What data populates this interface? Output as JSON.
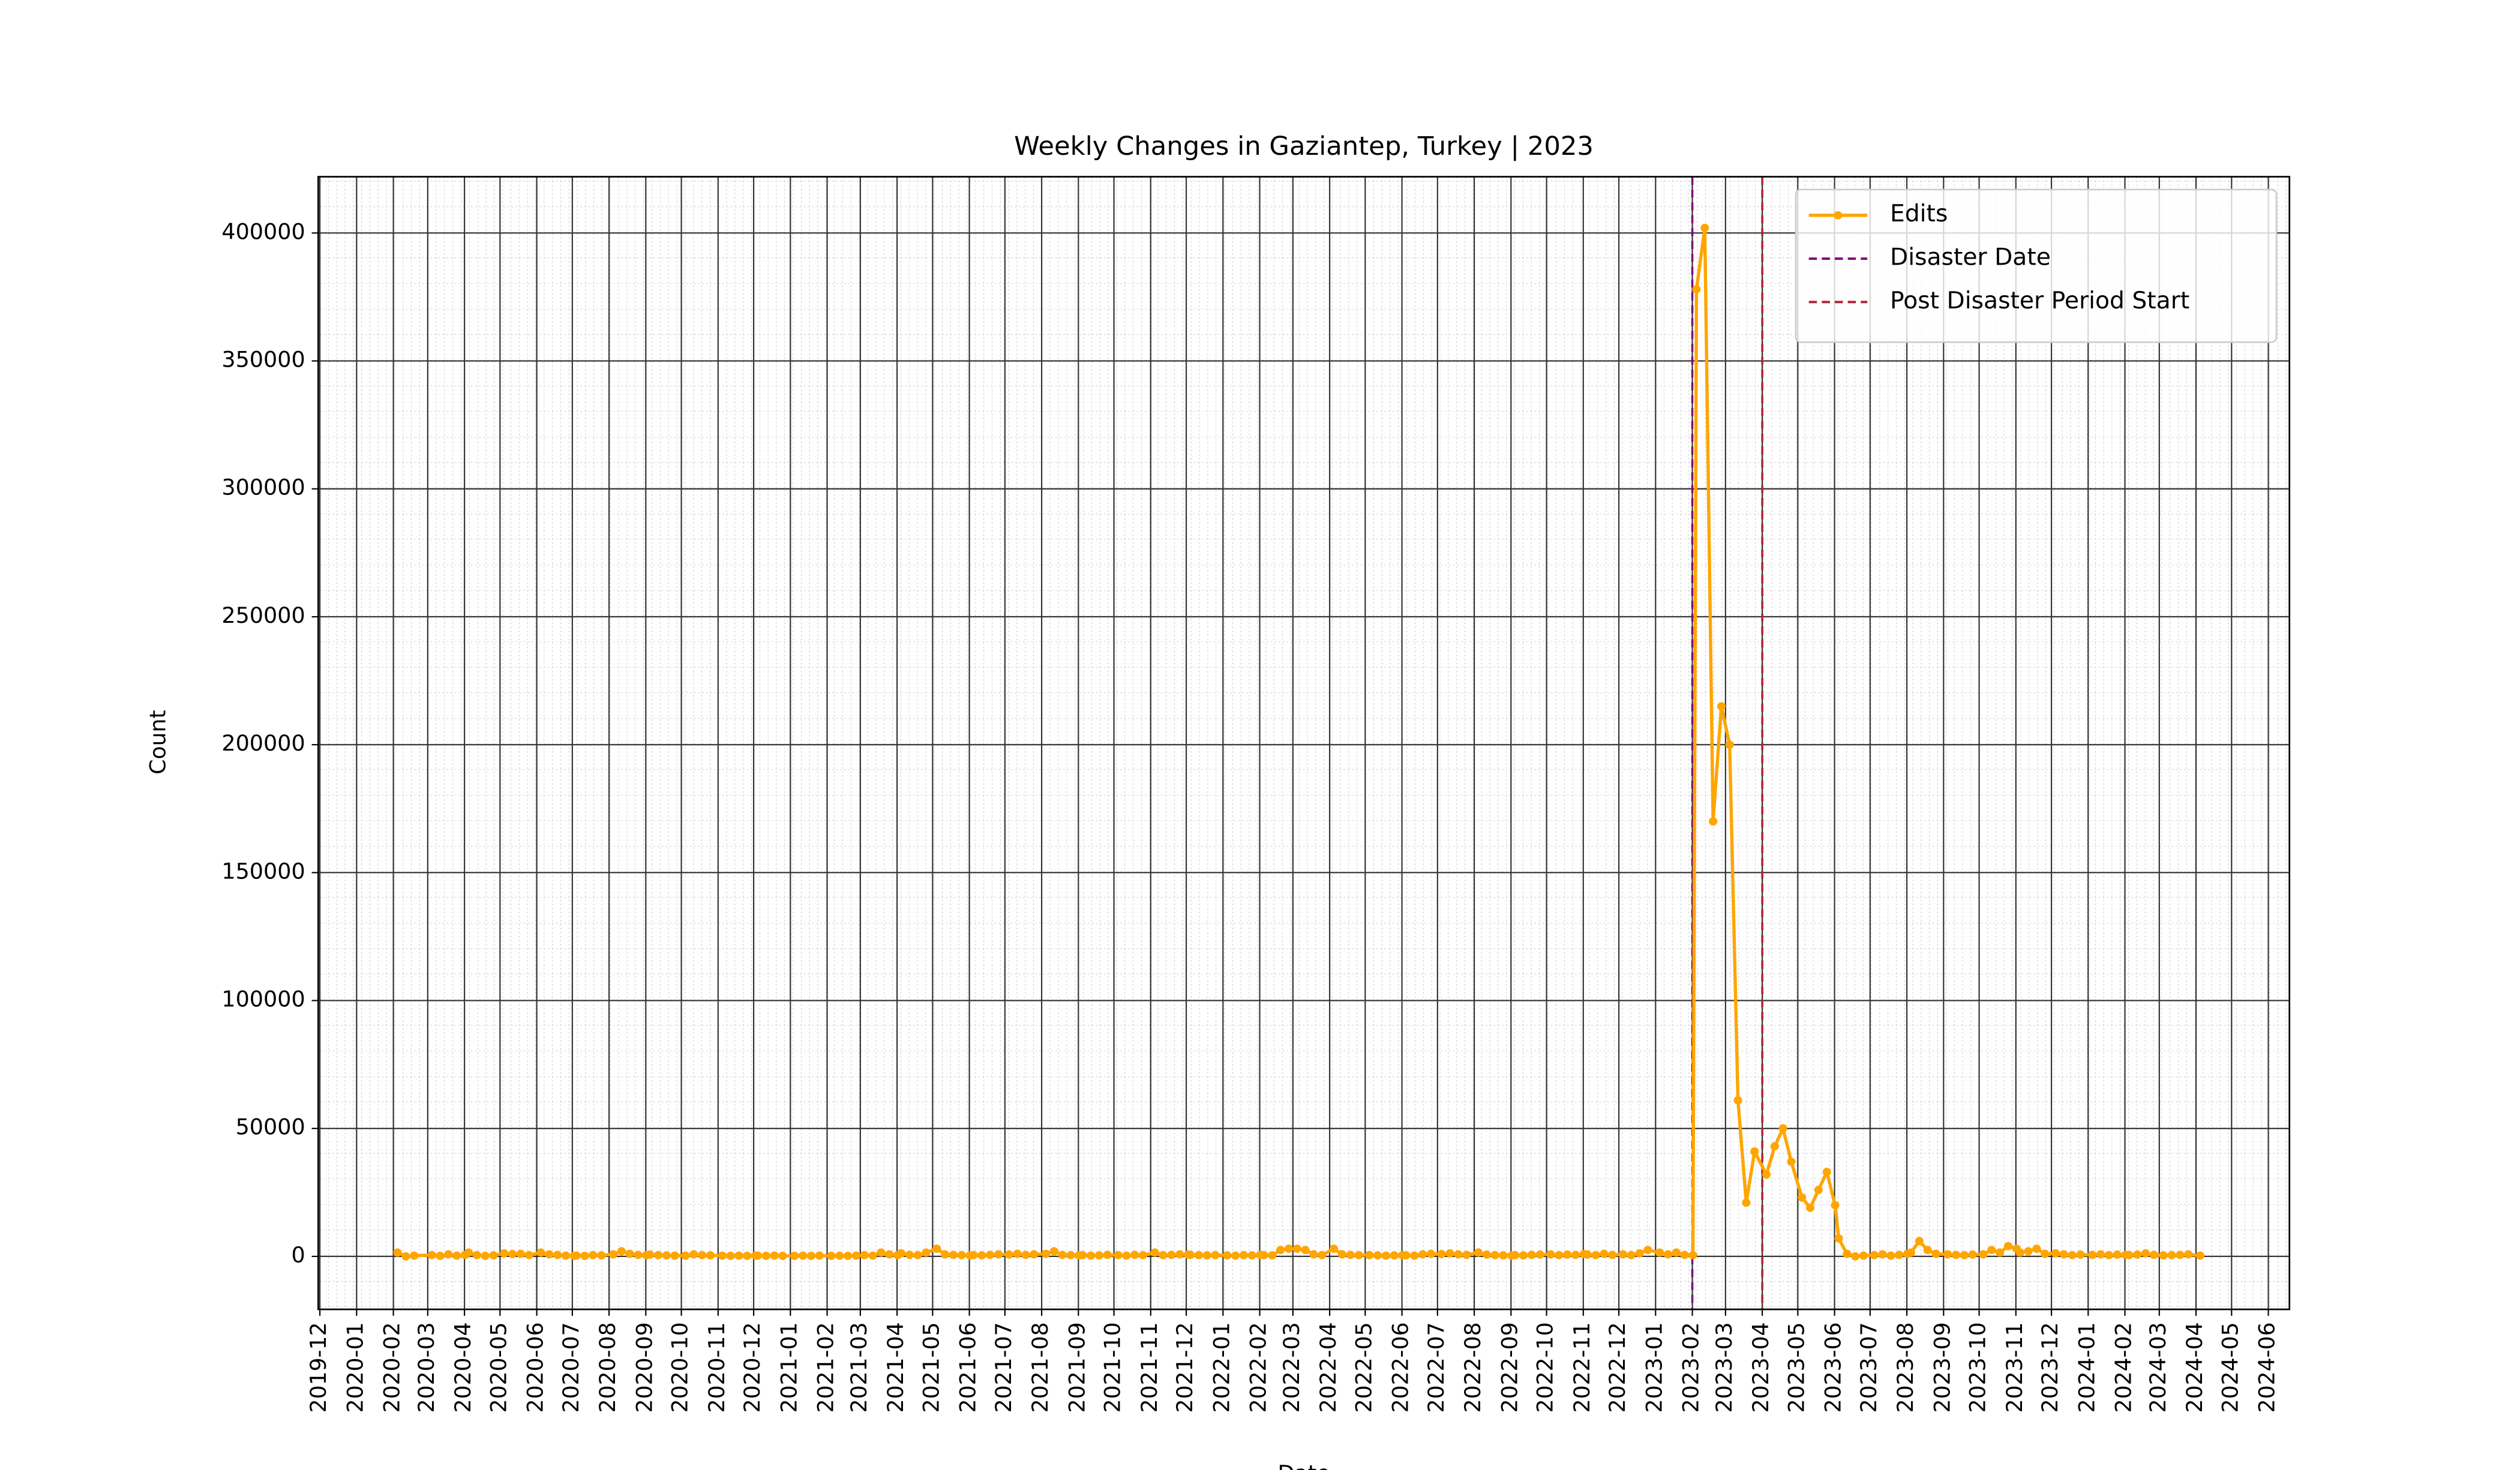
{
  "chart_data": {
    "type": "line",
    "title": "Weekly Changes in Gaziantep, Turkey | 2023",
    "xlabel": "Date",
    "ylabel": "Count",
    "x": [
      "2020-02",
      "2020-02",
      "2020-02",
      "2020-03",
      "2020-03",
      "2020-03",
      "2020-03",
      "2020-03",
      "2020-04",
      "2020-04",
      "2020-04",
      "2020-04",
      "2020-05",
      "2020-05",
      "2020-05",
      "2020-05",
      "2020-06",
      "2020-06",
      "2020-06",
      "2020-06",
      "2020-06",
      "2020-07",
      "2020-07",
      "2020-07",
      "2020-07",
      "2020-08",
      "2020-08",
      "2020-08",
      "2020-08",
      "2020-08",
      "2020-09",
      "2020-09",
      "2020-09",
      "2020-09",
      "2020-10",
      "2020-10",
      "2020-10",
      "2020-10",
      "2020-11",
      "2020-11",
      "2020-11",
      "2020-11",
      "2020-11",
      "2020-12",
      "2020-12",
      "2020-12",
      "2020-12",
      "2021-01",
      "2021-01",
      "2021-01",
      "2021-01",
      "2021-02",
      "2021-02",
      "2021-02",
      "2021-02",
      "2021-03",
      "2021-03",
      "2021-03",
      "2021-03",
      "2021-03",
      "2021-04",
      "2021-04",
      "2021-04",
      "2021-04",
      "2021-05",
      "2021-05",
      "2021-05",
      "2021-05",
      "2021-05",
      "2021-06",
      "2021-06",
      "2021-06",
      "2021-06",
      "2021-07",
      "2021-07",
      "2021-07",
      "2021-07",
      "2021-08",
      "2021-08",
      "2021-08",
      "2021-08",
      "2021-08",
      "2021-09",
      "2021-09",
      "2021-09",
      "2021-09",
      "2021-10",
      "2021-10",
      "2021-10",
      "2021-10",
      "2021-11",
      "2021-11",
      "2021-11",
      "2021-11",
      "2021-11",
      "2021-12",
      "2021-12",
      "2021-12",
      "2021-12",
      "2022-01",
      "2022-01",
      "2022-01",
      "2022-01",
      "2022-01",
      "2022-02",
      "2022-02",
      "2022-02",
      "2022-02",
      "2022-03",
      "2022-03",
      "2022-03",
      "2022-03",
      "2022-04",
      "2022-04",
      "2022-04",
      "2022-04",
      "2022-05",
      "2022-05",
      "2022-05",
      "2022-05",
      "2022-05",
      "2022-06",
      "2022-06",
      "2022-06",
      "2022-06",
      "2022-07",
      "2022-07",
      "2022-07",
      "2022-07",
      "2022-08",
      "2022-08",
      "2022-08",
      "2022-08",
      "2022-08",
      "2022-09",
      "2022-09",
      "2022-09",
      "2022-09",
      "2022-10",
      "2022-10",
      "2022-10",
      "2022-10",
      "2022-10",
      "2022-11",
      "2022-11",
      "2022-11",
      "2022-11",
      "2022-12",
      "2022-12",
      "2022-12",
      "2022-12",
      "2023-01",
      "2023-01",
      "2023-01",
      "2023-01",
      "2023-01",
      "2023-02",
      "2023-02",
      "2023-02",
      "2023-02",
      "2023-03",
      "2023-03",
      "2023-03",
      "2023-03",
      "2023-04",
      "2023-04",
      "2023-04",
      "2023-04",
      "2023-05",
      "2023-05",
      "2023-05",
      "2023-05",
      "2023-05",
      "2023-06",
      "2023-06",
      "2023-06",
      "2023-06",
      "2023-07",
      "2023-07",
      "2023-07",
      "2023-07",
      "2023-07",
      "2023-08",
      "2023-08",
      "2023-08",
      "2023-08",
      "2023-09",
      "2023-09",
      "2023-09",
      "2023-09",
      "2023-10",
      "2023-10",
      "2023-10",
      "2023-10",
      "2023-10",
      "2023-11",
      "2023-11",
      "2023-11",
      "2023-11",
      "2023-12",
      "2023-12",
      "2023-12",
      "2023-12",
      "2024-01",
      "2024-01",
      "2024-01",
      "2024-01",
      "2024-01",
      "2024-02",
      "2024-02",
      "2024-02",
      "2024-02",
      "2024-03",
      "2024-03",
      "2024-03",
      "2024-03",
      "2024-04"
    ],
    "series": [
      {
        "name": "Edits",
        "color": "#ffa500",
        "values": [
          1500,
          0,
          300,
          500,
          200,
          800,
          300,
          600,
          1500,
          500,
          200,
          400,
          1200,
          900,
          1000,
          500,
          1500,
          800,
          600,
          300,
          200,
          300,
          200,
          500,
          400,
          800,
          2000,
          1000,
          600,
          500,
          700,
          500,
          400,
          300,
          300,
          800,
          500,
          400,
          300,
          200,
          300,
          200,
          300,
          300,
          200,
          300,
          200,
          200,
          300,
          200,
          300,
          200,
          300,
          200,
          300,
          500,
          300,
          1500,
          800,
          500,
          1200,
          600,
          500,
          1500,
          3000,
          800,
          600,
          500,
          400,
          500,
          400,
          600,
          800,
          700,
          1000,
          600,
          800,
          1000,
          2000,
          600,
          500,
          400,
          500,
          300,
          400,
          600,
          500,
          300,
          600,
          500,
          1500,
          500,
          600,
          800,
          700,
          600,
          500,
          400,
          500,
          400,
          300,
          500,
          400,
          600,
          500,
          400,
          2500,
          3000,
          3000,
          2500,
          800,
          500,
          3000,
          800,
          600,
          500,
          500,
          400,
          300,
          400,
          500,
          400,
          300,
          800,
          1000,
          900,
          1200,
          800,
          600,
          1500,
          700,
          500,
          400,
          300,
          500,
          400,
          600,
          700,
          800,
          500,
          700,
          600,
          900,
          700,
          500,
          1000,
          600,
          800,
          500,
          1200,
          2500,
          1500,
          800,
          1500,
          600,
          500,
          378000,
          402000,
          170000,
          215000,
          200000,
          61000,
          21000,
          41000,
          32000,
          43000,
          50000,
          37000,
          23000,
          19000,
          26000,
          33000,
          20000,
          7000,
          1000,
          0,
          300,
          500,
          800,
          300,
          600,
          1000,
          1500,
          6000,
          2500,
          1000,
          800,
          600,
          500,
          700,
          800,
          2500,
          1500,
          4000,
          3000,
          1500,
          2000,
          3000,
          1000,
          1200,
          800,
          500,
          700,
          600,
          800,
          500,
          700,
          600,
          500,
          700,
          1200,
          600,
          400,
          500,
          600,
          800,
          300
        ]
      }
    ],
    "vlines": [
      {
        "name": "Disaster Date",
        "x": "2023-02",
        "color": "#800080"
      },
      {
        "name": "Post Disaster Period Start",
        "x": "2023-04",
        "color": "#b22234"
      }
    ],
    "xlim": [
      "2019-12",
      "2024-06"
    ],
    "xticks": [
      "2019-12",
      "2020-01",
      "2020-02",
      "2020-03",
      "2020-04",
      "2020-05",
      "2020-06",
      "2020-07",
      "2020-08",
      "2020-09",
      "2020-10",
      "2020-11",
      "2020-12",
      "2021-01",
      "2021-02",
      "2021-03",
      "2021-04",
      "2021-05",
      "2021-06",
      "2021-07",
      "2021-08",
      "2021-09",
      "2021-10",
      "2021-11",
      "2021-12",
      "2022-01",
      "2022-02",
      "2022-03",
      "2022-04",
      "2022-05",
      "2022-06",
      "2022-07",
      "2022-08",
      "2022-09",
      "2022-10",
      "2022-11",
      "2022-12",
      "2023-01",
      "2023-02",
      "2023-03",
      "2023-04",
      "2023-05",
      "2023-06",
      "2023-07",
      "2023-08",
      "2023-09",
      "2023-10",
      "2023-11",
      "2023-12",
      "2024-01",
      "2024-02",
      "2024-03",
      "2024-04",
      "2024-05",
      "2024-06"
    ],
    "ylim": [
      -20700,
      422000
    ],
    "yticks": [
      0,
      50000,
      100000,
      150000,
      200000,
      250000,
      300000,
      350000,
      400000
    ],
    "grid": true,
    "legend": "upper right"
  }
}
